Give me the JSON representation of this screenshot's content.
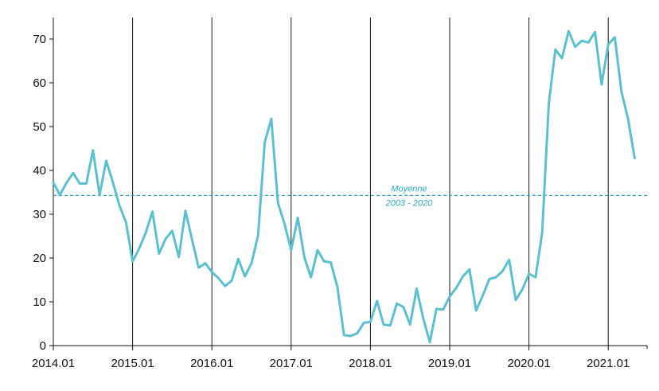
{
  "chart_data": {
    "type": "line",
    "title": "",
    "xlabel": "",
    "ylabel": "",
    "ylim": [
      0,
      75
    ],
    "yticks": [
      0,
      10,
      20,
      30,
      40,
      50,
      60,
      70
    ],
    "xticks": [
      "2014.01",
      "2015.01",
      "2016.01",
      "2017.01",
      "2018.01",
      "2019.01",
      "2020.01",
      "2021.01"
    ],
    "grid": "vertical lines at each year",
    "legend": "none",
    "series": [
      {
        "color": "#5bc0cf",
        "x_start": "2014.01",
        "x_step": "1 month",
        "values": [
          37.2,
          34.4,
          37.2,
          39.4,
          37.0,
          37.0,
          44.6,
          34.4,
          42.2,
          37.4,
          32.0,
          28.2,
          19.2,
          22.2,
          25.8,
          30.6,
          21.0,
          24.4,
          26.2,
          20.2,
          30.8,
          24.2,
          17.8,
          18.8,
          16.8,
          15.4,
          13.6,
          14.8,
          19.8,
          15.8,
          18.8,
          25.2,
          46.4,
          51.8,
          32.6,
          27.8,
          21.8,
          29.2,
          20.2,
          15.6,
          21.8,
          19.2,
          19.0,
          13.4,
          2.4,
          2.2,
          2.8,
          5.2,
          5.4,
          10.2,
          4.8,
          4.6,
          9.6,
          8.8,
          4.8,
          13.0,
          6.2,
          0.8,
          8.4,
          8.2,
          11.2,
          13.2,
          15.8,
          17.4,
          8.0,
          11.4,
          15.2,
          15.6,
          17.0,
          19.6,
          10.4,
          12.8,
          16.4,
          15.6,
          25.8,
          55.2,
          67.6,
          65.6,
          71.8,
          68.2,
          69.6,
          69.2,
          71.6,
          59.6,
          68.8,
          70.4,
          58.0,
          51.8,
          42.8
        ]
      }
    ],
    "reference_line": {
      "value": 34.3,
      "color": "#2aaec0",
      "label_line1": "Moyenne",
      "label_line2": "2003 - 2020"
    }
  }
}
